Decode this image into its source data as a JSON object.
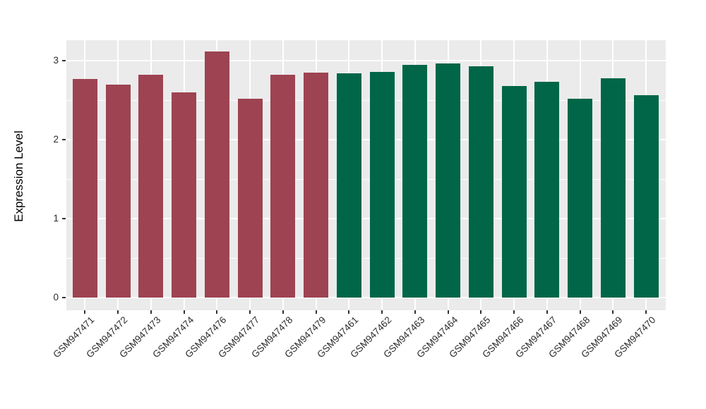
{
  "chart_data": {
    "type": "bar",
    "title": "",
    "xlabel": "",
    "ylabel": "Expression Level",
    "categories": [
      "GSM947471",
      "GSM947472",
      "GSM947473",
      "GSM947474",
      "GSM947476",
      "GSM947477",
      "GSM947478",
      "GSM947479",
      "GSM947461",
      "GSM947462",
      "GSM947463",
      "GSM947464",
      "GSM947465",
      "GSM947466",
      "GSM947467",
      "GSM947468",
      "GSM947469",
      "GSM947470"
    ],
    "values": [
      2.77,
      2.7,
      2.82,
      2.6,
      3.12,
      2.52,
      2.82,
      2.85,
      2.84,
      2.86,
      2.95,
      2.96,
      2.93,
      2.68,
      2.73,
      2.52,
      2.78,
      2.56
    ],
    "bar_group_ids": [
      "maroon",
      "maroon",
      "maroon",
      "maroon",
      "maroon",
      "maroon",
      "maroon",
      "maroon",
      "green",
      "green",
      "green",
      "green",
      "green",
      "green",
      "green",
      "green",
      "green",
      "green"
    ],
    "group_colors": {
      "maroon": "#9E4352",
      "green": "#006647"
    },
    "yticks": [
      "0",
      "1",
      "2",
      "3"
    ],
    "ytick_values": [
      0,
      1,
      2,
      3
    ],
    "yminor_values": [
      0.5,
      1.5,
      2.5
    ],
    "ylim": [
      -0.16,
      3.26
    ],
    "grid": "white major and minor horizontal lines, white vertical lines at category centers, ggplot gray theme",
    "legend_position": "none"
  },
  "styles": {
    "figure_bg": "#FFFFFF",
    "panel_bg": "#EBEBEB",
    "grid_major_color": "#FFFFFF",
    "grid_minor_color": "#FFFFFF",
    "axis_text_color": "#2B2B2B",
    "axis_title_color": "#000000",
    "tick_mark_color": "#333333"
  }
}
